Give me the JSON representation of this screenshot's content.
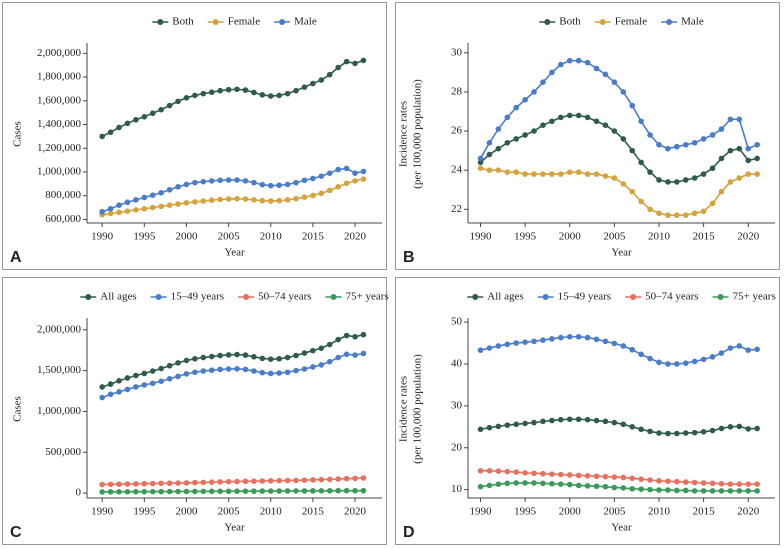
{
  "chart_data": [
    {
      "panel": "A",
      "type": "line",
      "ylabel": [
        "Cases"
      ],
      "xlabel": "Year",
      "x": [
        1990,
        1991,
        1992,
        1993,
        1994,
        1995,
        1996,
        1997,
        1998,
        1999,
        2000,
        2001,
        2002,
        2003,
        2004,
        2005,
        2006,
        2007,
        2008,
        2009,
        2010,
        2011,
        2012,
        2013,
        2014,
        2015,
        2016,
        2017,
        2018,
        2019,
        2020,
        2021
      ],
      "xlim": [
        1988.2,
        2023.2
      ],
      "xticks": [
        1990,
        1995,
        2000,
        2005,
        2010,
        2015,
        2020
      ],
      "ylim": [
        570000,
        2070000
      ],
      "yticks": [
        {
          "value": 600000,
          "label": "600,000"
        },
        {
          "value": 800000,
          "label": "800,000"
        },
        {
          "value": 1000000,
          "label": "1,000,000"
        },
        {
          "value": 1200000,
          "label": "1,200,000"
        },
        {
          "value": 1400000,
          "label": "1,400,000"
        },
        {
          "value": 1600000,
          "label": "1,600,000"
        },
        {
          "value": 1800000,
          "label": "1,800,000"
        },
        {
          "value": 2000000,
          "label": "2,000,000"
        }
      ],
      "series": [
        {
          "name": "Both",
          "color": "#2f5b4d",
          "values": [
            1300000,
            1335000,
            1375000,
            1410000,
            1440000,
            1465000,
            1495000,
            1525000,
            1560000,
            1595000,
            1625000,
            1645000,
            1660000,
            1672000,
            1685000,
            1693000,
            1697000,
            1690000,
            1670000,
            1650000,
            1640000,
            1645000,
            1660000,
            1685000,
            1715000,
            1745000,
            1775000,
            1820000,
            1880000,
            1930000,
            1915000,
            1940000
          ]
        },
        {
          "name": "Female",
          "color": "#d6a23c",
          "values": [
            640000,
            650000,
            660000,
            670000,
            680000,
            690000,
            700000,
            710000,
            720000,
            730000,
            740000,
            748000,
            755000,
            762000,
            768000,
            772000,
            774000,
            772000,
            765000,
            758000,
            755000,
            758000,
            765000,
            775000,
            788000,
            802000,
            820000,
            845000,
            875000,
            905000,
            925000,
            940000
          ]
        },
        {
          "name": "Male",
          "color": "#4a7cc9",
          "values": [
            665000,
            690000,
            720000,
            745000,
            765000,
            785000,
            805000,
            825000,
            850000,
            875000,
            895000,
            910000,
            918000,
            925000,
            930000,
            932000,
            932000,
            925000,
            910000,
            893000,
            885000,
            888000,
            895000,
            910000,
            930000,
            945000,
            965000,
            990000,
            1020000,
            1030000,
            990000,
            1005000
          ]
        }
      ]
    },
    {
      "panel": "B",
      "type": "line",
      "ylabel": [
        "Incidence rates",
        "(per 100,000 population)"
      ],
      "xlabel": "Year",
      "x": [
        1990,
        1991,
        1992,
        1993,
        1994,
        1995,
        1996,
        1997,
        1998,
        1999,
        2000,
        2001,
        2002,
        2003,
        2004,
        2005,
        2006,
        2007,
        2008,
        2009,
        2010,
        2011,
        2012,
        2013,
        2014,
        2015,
        2016,
        2017,
        2018,
        2019,
        2020,
        2021
      ],
      "xlim": [
        1988.6,
        2023.0
      ],
      "xticks": [
        1990,
        1995,
        2000,
        2005,
        2010,
        2015,
        2020
      ],
      "ylim": [
        21.3,
        30.4
      ],
      "yticks": [
        22,
        24,
        26,
        28,
        30
      ],
      "series": [
        {
          "name": "Both",
          "color": "#2f5b4d",
          "values": [
            24.4,
            24.8,
            25.1,
            25.4,
            25.6,
            25.8,
            26.0,
            26.3,
            26.5,
            26.7,
            26.8,
            26.8,
            26.7,
            26.5,
            26.3,
            26.0,
            25.6,
            25.0,
            24.4,
            23.9,
            23.5,
            23.4,
            23.4,
            23.5,
            23.6,
            23.8,
            24.1,
            24.6,
            25.0,
            25.1,
            24.5,
            24.6
          ]
        },
        {
          "name": "Female",
          "color": "#d6a23c",
          "values": [
            24.1,
            24.0,
            24.0,
            23.9,
            23.9,
            23.8,
            23.8,
            23.8,
            23.8,
            23.8,
            23.9,
            23.9,
            23.8,
            23.8,
            23.7,
            23.6,
            23.3,
            22.9,
            22.4,
            22.0,
            21.8,
            21.7,
            21.7,
            21.7,
            21.8,
            21.9,
            22.3,
            22.9,
            23.4,
            23.6,
            23.8,
            23.8
          ]
        },
        {
          "name": "Male",
          "color": "#4a7cc9",
          "values": [
            24.6,
            25.4,
            26.1,
            26.7,
            27.2,
            27.6,
            28.0,
            28.5,
            29.0,
            29.4,
            29.6,
            29.6,
            29.5,
            29.2,
            28.9,
            28.5,
            28.0,
            27.3,
            26.5,
            25.8,
            25.3,
            25.1,
            25.2,
            25.3,
            25.4,
            25.6,
            25.8,
            26.1,
            26.6,
            26.6,
            25.1,
            25.3
          ]
        }
      ]
    },
    {
      "panel": "C",
      "type": "line",
      "ylabel": [
        "Cases"
      ],
      "xlabel": "Year",
      "x": [
        1990,
        1991,
        1992,
        1993,
        1994,
        1995,
        1996,
        1997,
        1998,
        1999,
        2000,
        2001,
        2002,
        2003,
        2004,
        2005,
        2006,
        2007,
        2008,
        2009,
        2010,
        2011,
        2012,
        2013,
        2014,
        2015,
        2016,
        2017,
        2018,
        2019,
        2020,
        2021
      ],
      "xlim": [
        1988.2,
        2023.2
      ],
      "xticks": [
        1990,
        1995,
        2000,
        2005,
        2010,
        2015,
        2020
      ],
      "ylim": [
        -60000,
        2120000
      ],
      "yticks": [
        0,
        {
          "value": 500000,
          "label": "500,000"
        },
        {
          "value": 1000000,
          "label": "1,000,000"
        },
        {
          "value": 1500000,
          "label": "1,500,000"
        },
        {
          "value": 2000000,
          "label": "2,000,000"
        }
      ],
      "series": [
        {
          "name": "All ages",
          "color": "#2f5b4d",
          "values": [
            1300000,
            1335000,
            1375000,
            1410000,
            1440000,
            1465000,
            1495000,
            1525000,
            1560000,
            1595000,
            1625000,
            1645000,
            1660000,
            1672000,
            1685000,
            1693000,
            1697000,
            1690000,
            1670000,
            1650000,
            1640000,
            1645000,
            1660000,
            1685000,
            1715000,
            1745000,
            1775000,
            1820000,
            1880000,
            1930000,
            1915000,
            1940000
          ]
        },
        {
          "name": "15–49 years",
          "color": "#4a7cc9",
          "values": [
            1170000,
            1210000,
            1240000,
            1270000,
            1300000,
            1325000,
            1345000,
            1370000,
            1400000,
            1430000,
            1460000,
            1480000,
            1495000,
            1505000,
            1515000,
            1520000,
            1522000,
            1515000,
            1495000,
            1475000,
            1465000,
            1470000,
            1480000,
            1500000,
            1520000,
            1545000,
            1570000,
            1610000,
            1660000,
            1700000,
            1690000,
            1710000
          ]
        },
        {
          "name": "50–74 years",
          "color": "#e8705f",
          "values": [
            105000,
            107000,
            109000,
            111000,
            113000,
            115000,
            117000,
            119000,
            121000,
            123000,
            125000,
            128000,
            131000,
            134000,
            137000,
            140000,
            142000,
            144000,
            146000,
            148000,
            150000,
            152000,
            154000,
            156000,
            159000,
            162000,
            165000,
            168000,
            172000,
            177000,
            180000,
            185000
          ]
        },
        {
          "name": "75+ years",
          "color": "#3a9a5a",
          "values": [
            15000,
            15500,
            16000,
            16500,
            17000,
            17500,
            18000,
            18500,
            19000,
            19500,
            20000,
            20500,
            21000,
            21500,
            22000,
            22500,
            23000,
            23500,
            24000,
            24500,
            25000,
            25500,
            26000,
            26500,
            27000,
            27500,
            28000,
            28500,
            29000,
            29500,
            29500,
            30000
          ]
        }
      ]
    },
    {
      "panel": "D",
      "type": "line",
      "ylabel": [
        "Incidence rates",
        "(per 100,000 population)"
      ],
      "xlabel": "Year",
      "x": [
        1990,
        1991,
        1992,
        1993,
        1994,
        1995,
        1996,
        1997,
        1998,
        1999,
        2000,
        2001,
        2002,
        2003,
        2004,
        2005,
        2006,
        2007,
        2008,
        2009,
        2010,
        2011,
        2012,
        2013,
        2014,
        2015,
        2016,
        2017,
        2018,
        2019,
        2020,
        2021
      ],
      "xlim": [
        1988.6,
        2023.0
      ],
      "xticks": [
        1990,
        1995,
        2000,
        2005,
        2010,
        2015,
        2020
      ],
      "ylim": [
        8,
        50.5
      ],
      "yticks": [
        10,
        20,
        30,
        40,
        50
      ],
      "series": [
        {
          "name": "All ages",
          "color": "#2f5b4d",
          "values": [
            24.4,
            24.8,
            25.1,
            25.4,
            25.6,
            25.8,
            26.0,
            26.3,
            26.5,
            26.7,
            26.8,
            26.8,
            26.7,
            26.5,
            26.3,
            26.0,
            25.6,
            25.0,
            24.4,
            23.9,
            23.5,
            23.4,
            23.4,
            23.5,
            23.6,
            23.8,
            24.1,
            24.6,
            25.0,
            25.1,
            24.5,
            24.6
          ]
        },
        {
          "name": "15–49 years",
          "color": "#4a7cc9",
          "values": [
            43.3,
            43.8,
            44.3,
            44.7,
            45.0,
            45.2,
            45.4,
            45.7,
            46.0,
            46.3,
            46.5,
            46.5,
            46.3,
            45.9,
            45.4,
            44.9,
            44.3,
            43.4,
            42.3,
            41.3,
            40.4,
            40.0,
            40.0,
            40.2,
            40.6,
            41.1,
            41.7,
            42.6,
            43.8,
            44.3,
            43.3,
            43.5
          ]
        },
        {
          "name": "50–74 years",
          "color": "#e8705f",
          "values": [
            14.5,
            14.5,
            14.4,
            14.3,
            14.2,
            14.0,
            13.9,
            13.8,
            13.7,
            13.6,
            13.5,
            13.4,
            13.3,
            13.2,
            13.1,
            13.0,
            12.9,
            12.7,
            12.5,
            12.3,
            12.1,
            12.0,
            11.9,
            11.8,
            11.7,
            11.6,
            11.5,
            11.4,
            11.3,
            11.3,
            11.3,
            11.3
          ]
        },
        {
          "name": "75+ years",
          "color": "#3a9a5a",
          "values": [
            10.7,
            11.0,
            11.3,
            11.5,
            11.6,
            11.6,
            11.6,
            11.5,
            11.4,
            11.3,
            11.2,
            11.0,
            10.9,
            10.8,
            10.7,
            10.5,
            10.4,
            10.2,
            10.1,
            10.0,
            9.9,
            9.9,
            9.8,
            9.8,
            9.7,
            9.7,
            9.7,
            9.7,
            9.7,
            9.7,
            9.7,
            9.7
          ]
        }
      ]
    }
  ]
}
